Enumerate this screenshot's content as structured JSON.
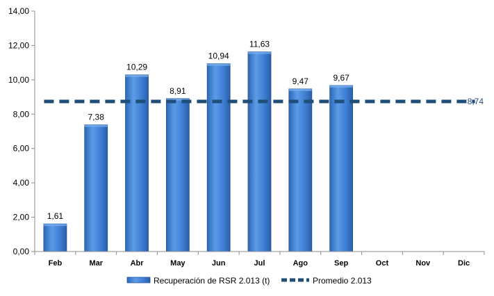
{
  "chart_data": {
    "type": "bar",
    "categories": [
      "Feb",
      "Mar",
      "Abr",
      "May",
      "Jun",
      "Jul",
      "Ago",
      "Sep",
      "Oct",
      "Nov",
      "Dic"
    ],
    "series": [
      {
        "name": "Recuperación de RSR 2.013 (t)",
        "type": "bar",
        "values": [
          1.61,
          7.38,
          10.29,
          8.91,
          10.94,
          11.63,
          9.47,
          9.67,
          null,
          null,
          null
        ],
        "labels": [
          "1,61",
          "7,38",
          "10,29",
          "8,91",
          "10,94",
          "11,63",
          "9,47",
          "9,67",
          "",
          "",
          ""
        ],
        "color": "#3f7fd4"
      },
      {
        "name": "Promedio 2.013",
        "type": "line",
        "style": "dashed",
        "value": 8.74,
        "label": "8,74",
        "color": "#1f4e79"
      }
    ],
    "ylim": [
      0,
      14
    ],
    "yticks": [
      "0,00",
      "2,00",
      "4,00",
      "6,00",
      "8,00",
      "10,00",
      "12,00",
      "14,00"
    ],
    "ytick_values": [
      0,
      2,
      4,
      6,
      8,
      10,
      12,
      14
    ],
    "grid": false,
    "legend_position": "bottom",
    "title": "",
    "xlabel": "",
    "ylabel": ""
  }
}
